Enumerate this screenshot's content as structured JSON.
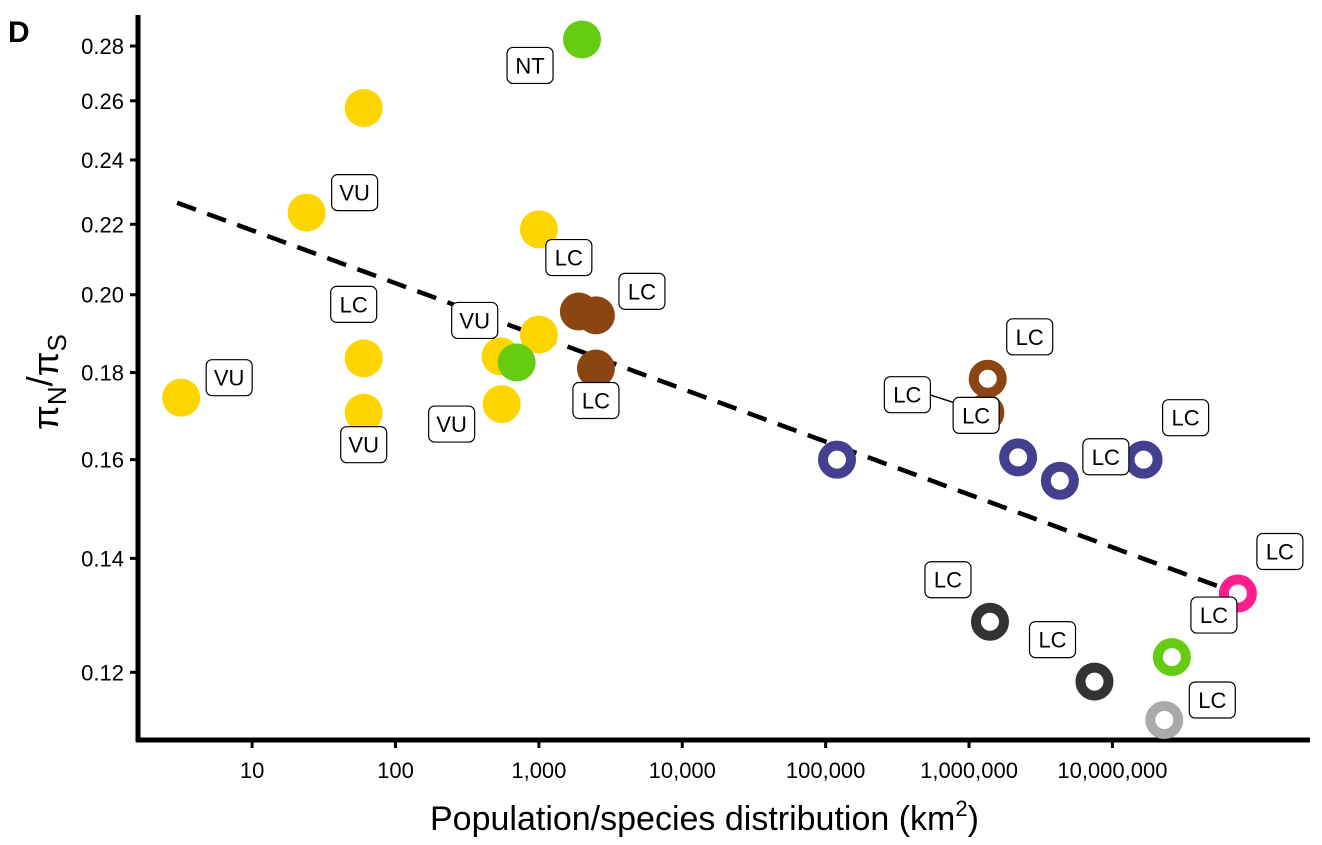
{
  "chart_data": {
    "type": "scatter",
    "panel_label": "D",
    "xlabel": "Population/species distribution (km",
    "xlabel_superscript": "2",
    "xlabel_suffix": ")",
    "ylabel": {
      "pi": "π",
      "sub_n": "N",
      "slash": "/",
      "sub_s": "S"
    },
    "x_scale": "log",
    "y_scale": "log",
    "xlim": [
      1.6,
      210000000
    ],
    "ylim": [
      0.1095,
      0.292
    ],
    "x_ticks": [
      10,
      100,
      1000,
      10000,
      100000,
      1000000,
      10000000
    ],
    "x_tick_labels": [
      "10",
      "100",
      "1,000",
      "10,000",
      "100,000",
      "1,000,000",
      "10,000,000"
    ],
    "y_ticks": [
      0.12,
      0.14,
      0.16,
      0.18,
      0.2,
      0.22,
      0.24,
      0.26,
      0.28
    ],
    "y_tick_labels": [
      "0.12",
      "0.14",
      "0.16",
      "0.18",
      "0.20",
      "0.22",
      "0.24",
      "0.26",
      "0.28"
    ],
    "grid": false,
    "legend": "none",
    "trend_line": {
      "style": "dashed",
      "color": "#000000",
      "x": [
        3,
        75000000
      ],
      "y": [
        0.2265,
        0.1335
      ]
    },
    "points": [
      {
        "x": 3.2,
        "y": 0.174,
        "color": "#FFD500",
        "fill": "solid",
        "label": "VU",
        "label_pos": "right"
      },
      {
        "x": 24,
        "y": 0.2235,
        "color": "#FFD500",
        "fill": "solid",
        "label": "VU",
        "label_pos": "right"
      },
      {
        "x": 60,
        "y": 0.2575,
        "color": "#FFD500",
        "fill": "solid",
        "label": "",
        "label_pos": "none"
      },
      {
        "x": 60,
        "y": 0.1835,
        "color": "#FFD500",
        "fill": "solid",
        "label": "LC",
        "label_pos": "above"
      },
      {
        "x": 60,
        "y": 0.1705,
        "color": "#FFD500",
        "fill": "solid",
        "label": "VU",
        "label_pos": "below"
      },
      {
        "x": 540,
        "y": 0.184,
        "color": "#FFD500",
        "fill": "solid",
        "label": "",
        "label_pos": "none"
      },
      {
        "x": 550,
        "y": 0.1725,
        "color": "#FFD500",
        "fill": "solid",
        "label": "VU",
        "label_pos": "left"
      },
      {
        "x": 1000,
        "y": 0.1895,
        "color": "#FFD500",
        "fill": "solid",
        "label": "",
        "label_pos": "none"
      },
      {
        "x": 1000,
        "y": 0.2185,
        "color": "#FFD500",
        "fill": "solid",
        "label": "",
        "label_pos": "none"
      },
      {
        "x": 700,
        "y": 0.1825,
        "color": "#66CC11",
        "fill": "solid",
        "label": "VU",
        "label_pos": "upleft"
      },
      {
        "x": 2000,
        "y": 0.2825,
        "color": "#66CC11",
        "fill": "solid",
        "label": "NT",
        "label_pos": "belowleft"
      },
      {
        "x": 1900,
        "y": 0.1955,
        "color": "#8B4513",
        "fill": "solid",
        "label": "LC",
        "label_pos": "above"
      },
      {
        "x": 2500,
        "y": 0.1945,
        "color": "#8B4513",
        "fill": "solid",
        "label": "LC",
        "label_pos": "belowright"
      },
      {
        "x": 2500,
        "y": 0.181,
        "color": "#8B4513",
        "fill": "solid",
        "label": "LC",
        "label_pos": "below"
      },
      {
        "x": 120000,
        "y": 0.16,
        "color": "#453F90",
        "fill": "ring",
        "label": "",
        "label_pos": "none"
      },
      {
        "x": 1350000,
        "y": 0.1785,
        "color": "#8B4513",
        "fill": "ring",
        "label": "LC",
        "label_pos": "upright"
      },
      {
        "x": 1300000,
        "y": 0.1705,
        "color": "#8B4513",
        "fill": "ring",
        "label": "LC",
        "label_pos": "leftleader"
      },
      {
        "x": 2200000,
        "y": 0.1605,
        "color": "#453F90",
        "fill": "ring",
        "label": "LC",
        "label_pos": "upleft"
      },
      {
        "x": 4300000,
        "y": 0.1555,
        "color": "#453F90",
        "fill": "ring",
        "label": "LC",
        "label_pos": "belowright"
      },
      {
        "x": 16500000,
        "y": 0.16,
        "color": "#453F90",
        "fill": "ring",
        "label": "LC",
        "label_pos": "upright"
      },
      {
        "x": 1400000,
        "y": 0.1285,
        "color": "#333333",
        "fill": "ring",
        "label": "LC",
        "label_pos": "upleft"
      },
      {
        "x": 7500000,
        "y": 0.1185,
        "color": "#333333",
        "fill": "ring",
        "label": "LC",
        "label_pos": "upleft"
      },
      {
        "x": 26000000,
        "y": 0.1225,
        "color": "#66CC11",
        "fill": "ring",
        "label": "LC",
        "label_pos": "upright"
      },
      {
        "x": 23000000,
        "y": 0.1125,
        "color": "#AAAAAA",
        "fill": "ring",
        "label": "LC",
        "label_pos": "right"
      },
      {
        "x": 75000000,
        "y": 0.1335,
        "color": "#FF1E8C",
        "fill": "ring",
        "label": "LC",
        "label_pos": "upright"
      }
    ]
  }
}
